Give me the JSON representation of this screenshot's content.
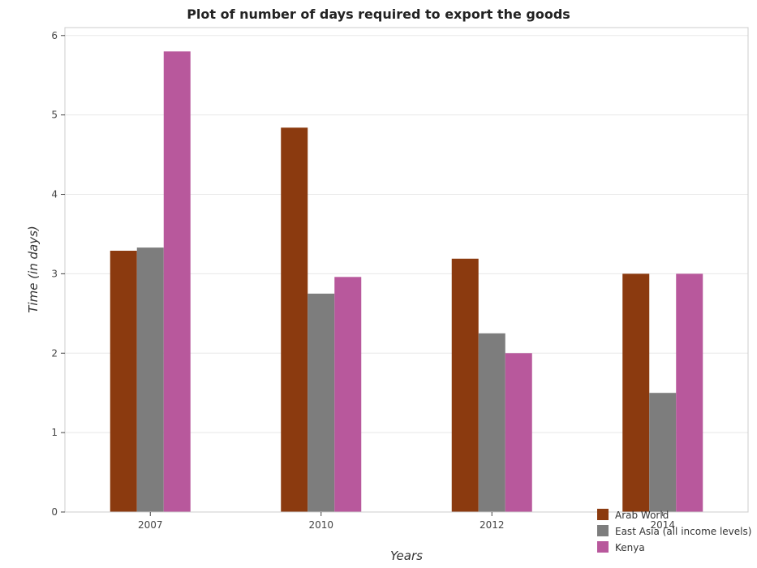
{
  "chart_data": {
    "type": "bar",
    "title": "Plot of number of days required to export the goods",
    "xlabel": "Years",
    "ylabel": "Time (in days)",
    "categories": [
      "2007",
      "2010",
      "2012",
      "2014"
    ],
    "series": [
      {
        "name": "Arab World",
        "color": "#8b3a0f",
        "values": [
          3.29,
          4.84,
          3.19,
          3.0
        ]
      },
      {
        "name": "East Asia (all income levels)",
        "color": "#7d7d7d",
        "values": [
          3.33,
          2.75,
          2.25,
          1.5
        ]
      },
      {
        "name": "Kenya",
        "color": "#b8589c",
        "values": [
          5.8,
          2.96,
          2.0,
          3.0
        ]
      }
    ],
    "ylim": [
      0,
      6.1
    ],
    "yticks": [
      "0",
      "1",
      "2",
      "3",
      "4",
      "5",
      "6"
    ],
    "grid": true,
    "legend_position": "bottom-right"
  }
}
